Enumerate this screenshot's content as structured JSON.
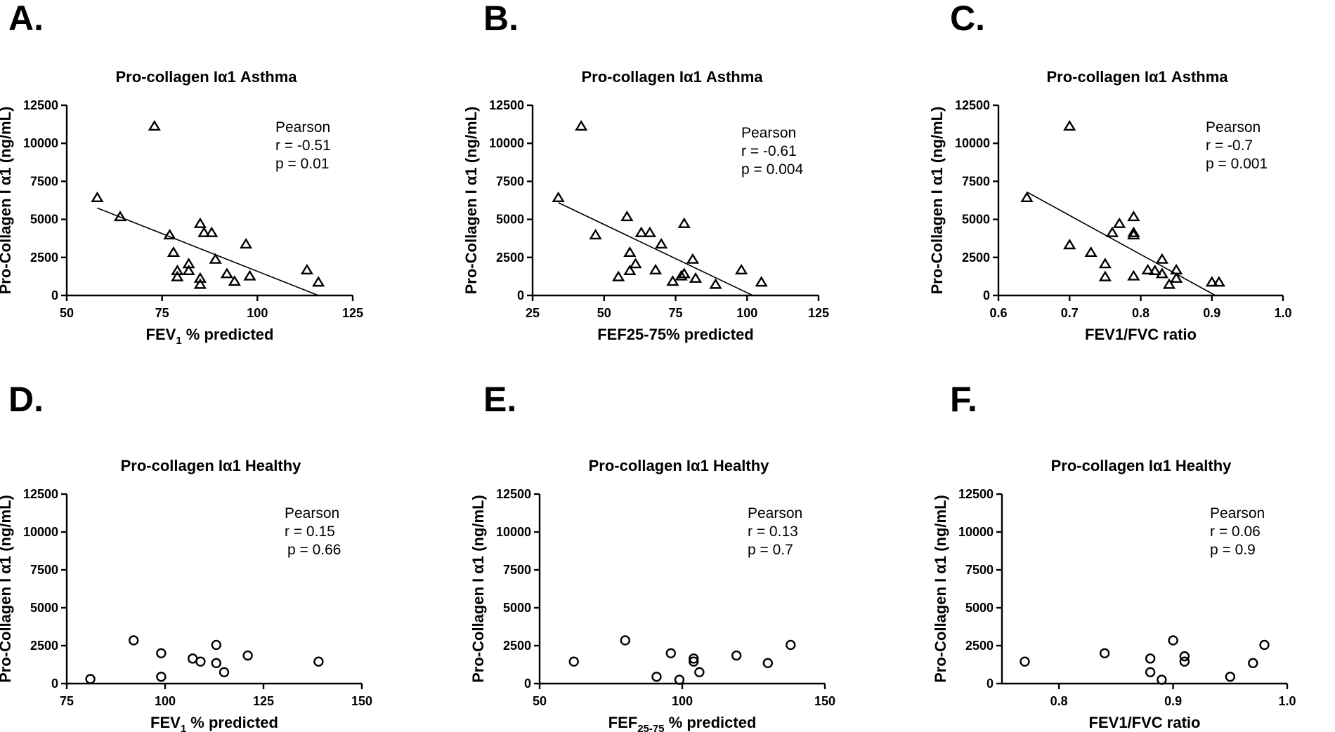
{
  "chart_data": [
    {
      "panel": "A.",
      "type": "scatter",
      "title": "Pro-collagen Iα1  Asthma",
      "xlabel": "FEV",
      "xlabel_sub": "1",
      "xlabel_rest": " % predicted",
      "ylabel": "Pro-Collagen I α1 (ng/mL)",
      "marker": "triangle",
      "xlim": [
        50,
        125
      ],
      "ylim": [
        0,
        12500
      ],
      "xticks": [
        "50",
        "75",
        "100",
        "125"
      ],
      "yticks": [
        "0",
        "2500",
        "5000",
        "7500",
        "10000",
        "12500"
      ],
      "stats": [
        "Pearson",
        "r = -0.51",
        "p = 0.01"
      ],
      "points": [
        [
          58,
          6400
        ],
        [
          64,
          5150
        ],
        [
          73,
          11100
        ],
        [
          77,
          3950
        ],
        [
          78,
          2800
        ],
        [
          79,
          1600
        ],
        [
          79,
          1200
        ],
        [
          82,
          2050
        ],
        [
          82,
          1600
        ],
        [
          85,
          4700
        ],
        [
          85,
          1100
        ],
        [
          85,
          700
        ],
        [
          86,
          4100
        ],
        [
          88,
          4100
        ],
        [
          89,
          2350
        ],
        [
          92,
          1400
        ],
        [
          94,
          900
        ],
        [
          97,
          3350
        ],
        [
          98,
          1250
        ],
        [
          113,
          1650
        ],
        [
          116,
          850
        ]
      ],
      "fit": [
        [
          58,
          5750
        ],
        [
          116,
          0
        ]
      ]
    },
    {
      "panel": "B.",
      "type": "scatter",
      "title": "Pro-collagen Iα1  Asthma",
      "xlabel": "FEF25-75% predicted",
      "xlabel_sub": "",
      "xlabel_rest": "",
      "ylabel": "Pro-Collagen I α1 (ng/mL)",
      "marker": "triangle",
      "xlim": [
        25,
        125
      ],
      "ylim": [
        0,
        12500
      ],
      "xticks": [
        "25",
        "50",
        "75",
        "100",
        "125"
      ],
      "yticks": [
        "0",
        "2500",
        "5000",
        "7500",
        "10000",
        "12500"
      ],
      "stats": [
        "Pearson",
        "r = -0.61",
        "p = 0.004"
      ],
      "points": [
        [
          34,
          6400
        ],
        [
          42,
          11100
        ],
        [
          47,
          3950
        ],
        [
          55,
          1200
        ],
        [
          58,
          5150
        ],
        [
          59,
          2800
        ],
        [
          59,
          1600
        ],
        [
          61,
          2050
        ],
        [
          63,
          4100
        ],
        [
          66,
          4100
        ],
        [
          68,
          1650
        ],
        [
          70,
          3350
        ],
        [
          74,
          900
        ],
        [
          77,
          1250
        ],
        [
          78,
          4700
        ],
        [
          78,
          1400
        ],
        [
          81,
          2350
        ],
        [
          82,
          1100
        ],
        [
          89,
          700
        ],
        [
          98,
          1650
        ],
        [
          105,
          850
        ]
      ],
      "fit": [
        [
          34,
          6100
        ],
        [
          102,
          0
        ]
      ]
    },
    {
      "panel": "C.",
      "type": "scatter",
      "title": "Pro-collagen Iα1  Asthma",
      "xlabel": "FEV1/FVC ratio",
      "xlabel_sub": "",
      "xlabel_rest": "",
      "ylabel": "Pro-Collagen I α1 (ng/mL)",
      "marker": "triangle",
      "xlim": [
        0.6,
        1.0
      ],
      "ylim": [
        0,
        12500
      ],
      "xticks": [
        "0.6",
        "0.7",
        "0.8",
        "0.9",
        "1.0"
      ],
      "yticks": [
        "0",
        "2500",
        "5000",
        "7500",
        "10000",
        "12500"
      ],
      "stats": [
        "Pearson",
        "r = -0.7",
        "p = 0.001"
      ],
      "points": [
        [
          0.64,
          6400
        ],
        [
          0.7,
          11100
        ],
        [
          0.7,
          3300
        ],
        [
          0.73,
          2800
        ],
        [
          0.75,
          2050
        ],
        [
          0.75,
          1200
        ],
        [
          0.76,
          4100
        ],
        [
          0.77,
          4700
        ],
        [
          0.79,
          5150
        ],
        [
          0.79,
          4100
        ],
        [
          0.79,
          3950
        ],
        [
          0.79,
          1250
        ],
        [
          0.81,
          1650
        ],
        [
          0.82,
          1600
        ],
        [
          0.83,
          2350
        ],
        [
          0.83,
          1400
        ],
        [
          0.84,
          700
        ],
        [
          0.85,
          1650
        ],
        [
          0.85,
          1100
        ],
        [
          0.9,
          850
        ],
        [
          0.91,
          850
        ]
      ],
      "fit": [
        [
          0.64,
          6800
        ],
        [
          0.905,
          0
        ]
      ]
    },
    {
      "panel": "D.",
      "type": "scatter",
      "title": "Pro-collagen Iα1  Healthy",
      "xlabel": "FEV",
      "xlabel_sub": "1",
      "xlabel_rest": " % predicted",
      "ylabel": "Pro-Collagen I α1 (ng/mL)",
      "marker": "circle",
      "xlim": [
        75,
        150
      ],
      "ylim": [
        0,
        12500
      ],
      "xticks": [
        "75",
        "100",
        "125",
        "150"
      ],
      "yticks": [
        "0",
        "2500",
        "5000",
        "7500",
        "10000",
        "12500"
      ],
      "stats": [
        "Pearson",
        "r = 0.15",
        " p = 0.66"
      ],
      "points": [
        [
          81,
          300
        ],
        [
          92,
          2850
        ],
        [
          99,
          2000
        ],
        [
          99,
          450
        ],
        [
          107,
          1650
        ],
        [
          109,
          1450
        ],
        [
          113,
          2550
        ],
        [
          113,
          1350
        ],
        [
          115,
          750
        ],
        [
          121,
          1850
        ],
        [
          139,
          1450
        ]
      ],
      "fit": null
    },
    {
      "panel": "E.",
      "type": "scatter",
      "title": "Pro-collagen Iα1  Healthy",
      "xlabel": "FEF",
      "xlabel_sub": "25-75",
      "xlabel_rest": " % predicted",
      "ylabel": "Pro-Collagen I α1 (ng/mL)",
      "marker": "circle",
      "xlim": [
        50,
        150
      ],
      "ylim": [
        0,
        12500
      ],
      "xticks": [
        "50",
        "100",
        "150"
      ],
      "yticks": [
        "0",
        "2500",
        "5000",
        "7500",
        "10000",
        "12500"
      ],
      "stats": [
        "Pearson",
        "r = 0.13",
        "p = 0.7"
      ],
      "points": [
        [
          62,
          1450
        ],
        [
          80,
          2850
        ],
        [
          91,
          450
        ],
        [
          96,
          2000
        ],
        [
          99,
          250
        ],
        [
          104,
          1650
        ],
        [
          104,
          1450
        ],
        [
          106,
          750
        ],
        [
          119,
          1850
        ],
        [
          130,
          1350
        ],
        [
          138,
          2550
        ]
      ],
      "fit": null
    },
    {
      "panel": "F.",
      "type": "scatter",
      "title": "Pro-collagen Iα1  Healthy",
      "xlabel": "FEV1/FVC ratio",
      "xlabel_sub": "",
      "xlabel_rest": "",
      "ylabel": "Pro-Collagen I α1 (ng/mL)",
      "marker": "circle",
      "xlim": [
        0.75,
        1.0
      ],
      "ylim": [
        0,
        12500
      ],
      "xticks": [
        "0.8",
        "0.9",
        "1.0"
      ],
      "yticks": [
        "0",
        "2500",
        "5000",
        "7500",
        "10000",
        "12500"
      ],
      "stats": [
        "Pearson",
        "r = 0.06",
        "p = 0.9"
      ],
      "points": [
        [
          0.77,
          1450
        ],
        [
          0.84,
          2000
        ],
        [
          0.88,
          1650
        ],
        [
          0.88,
          750
        ],
        [
          0.89,
          250
        ],
        [
          0.9,
          2850
        ],
        [
          0.91,
          1800
        ],
        [
          0.91,
          1450
        ],
        [
          0.95,
          450
        ],
        [
          0.97,
          1350
        ],
        [
          0.98,
          2550
        ]
      ],
      "fit": null
    }
  ]
}
